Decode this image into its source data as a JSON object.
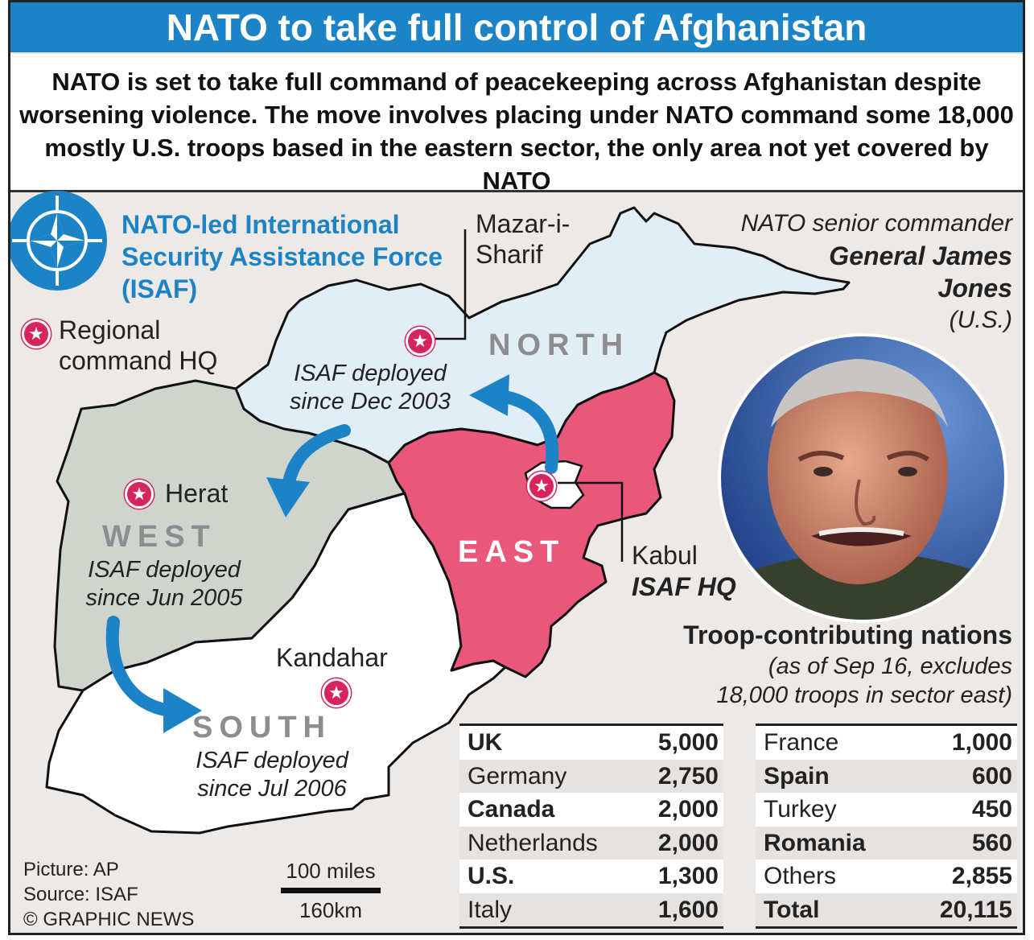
{
  "title": "NATO to take full control of Afghanistan",
  "lede": "NATO is set to take full command of peacekeeping across Afghanistan despite worsening violence. The move involves placing under NATO command some 18,000 mostly U.S. troops based in the eastern sector, the only area not yet covered by NATO",
  "logo_label": "NATO-led International Security Assistance Force (ISAF)",
  "legend": {
    "hq": "Regional command HQ"
  },
  "cities": {
    "mazar": "Mazar-i-Sharif",
    "herat": "Herat",
    "kandahar": "Kandahar",
    "kabul": "Kabul",
    "kabul_hq": "ISAF HQ"
  },
  "regions": {
    "north": {
      "name": "NORTH",
      "note": "ISAF deployed since Dec 2003",
      "color": "#e2eef6"
    },
    "west": {
      "name": "WEST",
      "note": "ISAF deployed since Jun 2005",
      "color": "#cfd5cc"
    },
    "south": {
      "name": "SOUTH",
      "note": "ISAF deployed since Jul 2006",
      "color": "#ffffff"
    },
    "east": {
      "name": "EAST",
      "color": "#e9577a"
    }
  },
  "commander": {
    "role": "NATO senior commander",
    "name_line1": "General James",
    "name_line2": "Jones",
    "country": "(U.S.)"
  },
  "table": {
    "title": "Troop-contributing nations",
    "subtitle1": "(as of Sep 16, excludes",
    "subtitle2": "18,000 troops in sector east)",
    "left": [
      {
        "name": "UK",
        "value": "5,000",
        "bold": true
      },
      {
        "name": "Germany",
        "value": "2,750",
        "bold": false
      },
      {
        "name": "Canada",
        "value": "2,000",
        "bold": true
      },
      {
        "name": "Netherlands",
        "value": "2,000",
        "bold": false
      },
      {
        "name": "U.S.",
        "value": "1,300",
        "bold": true
      },
      {
        "name": "Italy",
        "value": "1,600",
        "bold": false
      }
    ],
    "right": [
      {
        "name": "France",
        "value": "1,000",
        "bold": false
      },
      {
        "name": "Spain",
        "value": "600",
        "bold": true
      },
      {
        "name": "Turkey",
        "value": "450",
        "bold": false
      },
      {
        "name": "Romania",
        "value": "560",
        "bold": true
      },
      {
        "name": "Others",
        "value": "2,855",
        "bold": false
      },
      {
        "name": "Total",
        "value": "20,115",
        "bold": true
      }
    ]
  },
  "scale": {
    "miles": "100 miles",
    "km": "160km"
  },
  "credits": {
    "picture": "Picture: AP",
    "source": "Source: ISAF",
    "copyright": "© GRAPHIC NEWS"
  },
  "colors": {
    "nato_blue": "#1c84c6",
    "star": "#d7245c",
    "arrow": "#1c84c6"
  }
}
